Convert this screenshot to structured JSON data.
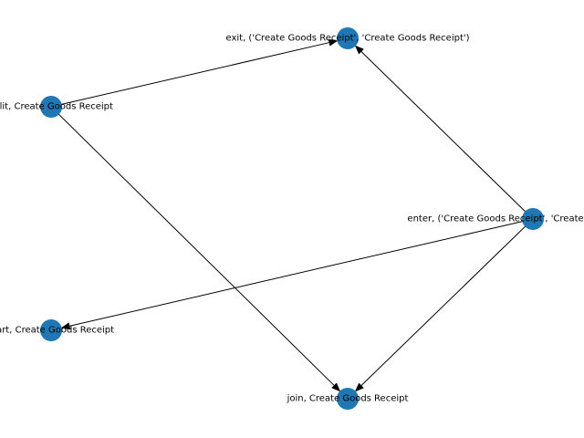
{
  "graph": {
    "node_color": "#1f77b4",
    "edge_color": "#000000",
    "label_color": "#000000",
    "directed": true,
    "nodes": [
      {
        "id": "n_exit",
        "label": "exit, ('Create Goods Receipt', 'Create Goods Receipt')"
      },
      {
        "id": "n_split",
        "label": "split, Create Goods Receipt"
      },
      {
        "id": "n_enter",
        "label": "enter, ('Create Goods Receipt', 'Create Goods Receipt')"
      },
      {
        "id": "n_start",
        "label": "start, Create Goods Receipt"
      },
      {
        "id": "n_join",
        "label": "join, Create Goods Receipt"
      }
    ],
    "edges": [
      {
        "from": "n_split",
        "to": "n_exit"
      },
      {
        "from": "n_split",
        "to": "n_join"
      },
      {
        "from": "n_enter",
        "to": "n_exit"
      },
      {
        "from": "n_enter",
        "to": "n_start"
      },
      {
        "from": "n_enter",
        "to": "n_join"
      }
    ]
  }
}
